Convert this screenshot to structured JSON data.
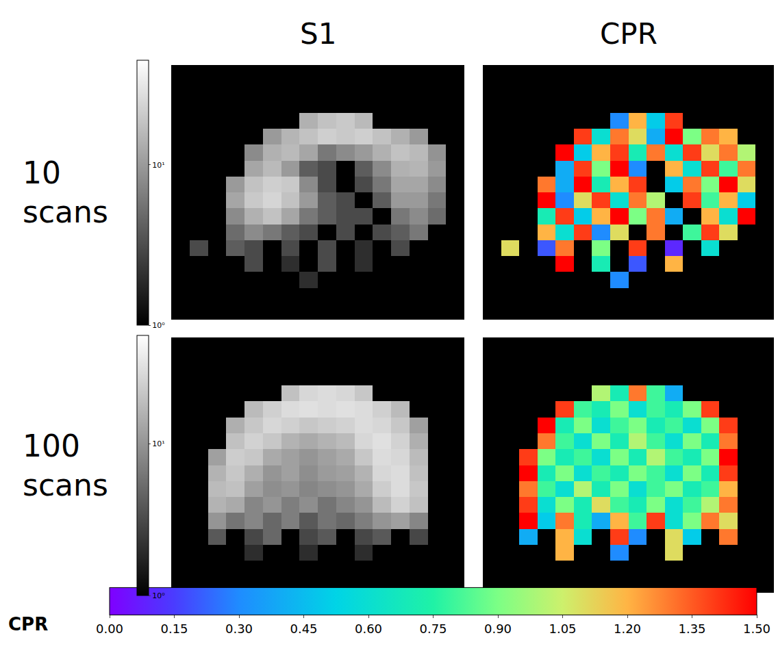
{
  "column_titles": [
    "S1",
    "CPR"
  ],
  "row_titles": [
    "10 scans",
    "100 scans"
  ],
  "colorbar": {
    "title": "CPR",
    "zlim": [
      0,
      1.5
    ],
    "zticks": [
      {
        "value": 0,
        "label": "0.00"
      },
      0.15,
      {
        "value": 0.3,
        "label": "0.30"
      },
      0.45,
      {
        "value": 0.6,
        "label": "0.60"
      },
      0.75,
      {
        "value": 0.9,
        "label": "0.90"
      },
      1.05,
      {
        "value": 1.2,
        "label": "1.20"
      },
      1.35,
      {
        "value": 1.5,
        "label": "1.50"
      }
    ]
  },
  "chart_data": [
    {
      "type": "heatmap",
      "log": true,
      "tick_labels": false,
      "zlim": [
        1,
        45
      ],
      "zticks": [
        {
          "value": 1,
          "label": "10⁰"
        },
        {
          "value": 10,
          "label": "10¹"
        }
      ],
      "cells": [
        [
          null,
          null,
          null,
          null,
          null,
          null,
          null,
          null,
          null,
          null,
          null,
          null,
          null,
          null,
          null,
          null
        ],
        [
          null,
          null,
          null,
          null,
          null,
          null,
          null,
          null,
          null,
          null,
          null,
          null,
          null,
          null,
          null,
          null
        ],
        [
          null,
          null,
          null,
          null,
          null,
          null,
          null,
          null,
          null,
          null,
          null,
          null,
          null,
          null,
          null,
          null
        ],
        [
          null,
          null,
          null,
          null,
          null,
          null,
          null,
          14,
          18,
          20,
          16,
          null,
          null,
          null,
          null,
          null
        ],
        [
          null,
          null,
          null,
          null,
          null,
          10,
          15,
          18,
          22,
          20,
          22,
          18,
          14,
          10,
          null,
          null
        ],
        [
          null,
          null,
          null,
          null,
          8,
          14,
          16,
          12,
          6,
          8,
          10,
          14,
          18,
          16,
          9,
          null
        ],
        [
          null,
          null,
          null,
          null,
          12,
          16,
          10,
          4,
          3,
          null,
          4,
          8,
          14,
          15,
          10,
          null
        ],
        [
          null,
          null,
          null,
          10,
          18,
          22,
          20,
          8,
          3,
          null,
          3,
          6,
          12,
          12,
          8,
          null
        ],
        [
          null,
          null,
          null,
          12,
          20,
          24,
          18,
          10,
          4,
          3,
          null,
          4,
          10,
          10,
          6,
          null
        ],
        [
          null,
          null,
          null,
          8,
          14,
          18,
          12,
          6,
          4,
          3,
          3,
          null,
          6,
          8,
          5,
          null
        ],
        [
          null,
          null,
          null,
          5,
          8,
          6,
          4,
          3,
          null,
          3,
          null,
          3,
          4,
          6,
          null,
          null
        ],
        [
          null,
          3,
          null,
          4,
          3,
          null,
          3,
          null,
          3,
          null,
          2,
          null,
          3,
          null,
          null,
          null
        ],
        [
          null,
          null,
          null,
          null,
          3,
          null,
          2,
          null,
          3,
          null,
          2,
          null,
          null,
          null,
          null,
          null
        ],
        [
          null,
          null,
          null,
          null,
          null,
          null,
          null,
          2,
          null,
          null,
          null,
          null,
          null,
          null,
          null,
          null
        ],
        [
          null,
          null,
          null,
          null,
          null,
          null,
          null,
          null,
          null,
          null,
          null,
          null,
          null,
          null,
          null,
          null
        ],
        [
          null,
          null,
          null,
          null,
          null,
          null,
          null,
          null,
          null,
          null,
          null,
          null,
          null,
          null,
          null,
          null
        ]
      ]
    },
    {
      "type": "heatmap",
      "tick_labels": false,
      "cells": [
        [
          null,
          null,
          null,
          null,
          null,
          null,
          null,
          null,
          null,
          null,
          null,
          null,
          null,
          null,
          null,
          null
        ],
        [
          null,
          null,
          null,
          null,
          null,
          null,
          null,
          null,
          null,
          null,
          null,
          null,
          null,
          null,
          null,
          null
        ],
        [
          null,
          null,
          null,
          null,
          null,
          null,
          null,
          null,
          null,
          null,
          null,
          null,
          null,
          null,
          null,
          null
        ],
        [
          null,
          null,
          null,
          null,
          null,
          null,
          null,
          0.3,
          1.2,
          0.5,
          1.4,
          null,
          null,
          null,
          null,
          null
        ],
        [
          null,
          null,
          null,
          null,
          null,
          1.4,
          0.6,
          1.3,
          1.1,
          0.4,
          1.5,
          0.9,
          1.3,
          1.2,
          null,
          null
        ],
        [
          null,
          null,
          null,
          null,
          1.5,
          0.5,
          1.2,
          1.4,
          0.7,
          1.3,
          0.6,
          1.4,
          1.1,
          1.3,
          1.0,
          null
        ],
        [
          null,
          null,
          null,
          null,
          0.4,
          1.4,
          0.9,
          1.5,
          0.3,
          null,
          1.2,
          0.6,
          1.4,
          0.8,
          1.3,
          null
        ],
        [
          null,
          null,
          null,
          1.3,
          0.4,
          1.5,
          0.7,
          1.2,
          1.4,
          null,
          0.5,
          1.3,
          0.9,
          1.5,
          1.1,
          null
        ],
        [
          null,
          null,
          null,
          1.5,
          0.3,
          1.1,
          1.4,
          0.6,
          1.3,
          1.0,
          null,
          1.4,
          0.8,
          1.2,
          0.5,
          null
        ],
        [
          null,
          null,
          null,
          0.7,
          1.4,
          0.5,
          1.2,
          1.5,
          0.9,
          1.3,
          0.4,
          null,
          1.2,
          0.6,
          1.5,
          null
        ],
        [
          null,
          null,
          null,
          1.2,
          0.6,
          1.4,
          0.3,
          1.1,
          null,
          1.3,
          null,
          0.8,
          1.4,
          1.1,
          null,
          null
        ],
        [
          null,
          1.1,
          null,
          0.2,
          1.3,
          null,
          0.9,
          null,
          1.4,
          null,
          0.1,
          null,
          0.6,
          null,
          null,
          null
        ],
        [
          null,
          null,
          null,
          null,
          1.5,
          null,
          0.7,
          null,
          0.2,
          null,
          1.2,
          null,
          null,
          null,
          null,
          null
        ],
        [
          null,
          null,
          null,
          null,
          null,
          null,
          null,
          0.3,
          null,
          null,
          null,
          null,
          null,
          null,
          null,
          null
        ],
        [
          null,
          null,
          null,
          null,
          null,
          null,
          null,
          null,
          null,
          null,
          null,
          null,
          null,
          null,
          null,
          null
        ],
        [
          null,
          null,
          null,
          null,
          null,
          null,
          null,
          null,
          null,
          null,
          null,
          null,
          null,
          null,
          null,
          null
        ]
      ]
    },
    {
      "type": "heatmap",
      "log": true,
      "tick_labels": false,
      "zlim": [
        1,
        52
      ],
      "zticks": [
        {
          "value": 1,
          "label": "10⁰"
        },
        {
          "value": 10,
          "label": "10¹"
        }
      ],
      "cells": [
        [
          null,
          null,
          null,
          null,
          null,
          null,
          null,
          null,
          null,
          null,
          null,
          null,
          null,
          null,
          null,
          null
        ],
        [
          null,
          null,
          null,
          null,
          null,
          null,
          null,
          null,
          null,
          null,
          null,
          null,
          null,
          null,
          null,
          null
        ],
        [
          null,
          null,
          null,
          null,
          null,
          null,
          null,
          null,
          null,
          null,
          null,
          null,
          null,
          null,
          null,
          null
        ],
        [
          null,
          null,
          null,
          null,
          null,
          null,
          20,
          28,
          30,
          28,
          22,
          null,
          null,
          null,
          null,
          null
        ],
        [
          null,
          null,
          null,
          null,
          18,
          25,
          30,
          32,
          30,
          32,
          30,
          25,
          18,
          null,
          null,
          null
        ],
        [
          null,
          null,
          null,
          15,
          22,
          28,
          25,
          22,
          24,
          26,
          30,
          28,
          22,
          12,
          null,
          null
        ],
        [
          null,
          null,
          null,
          20,
          26,
          22,
          16,
          14,
          16,
          18,
          28,
          32,
          26,
          15,
          null,
          null
        ],
        [
          null,
          null,
          12,
          24,
          22,
          14,
          12,
          10,
          12,
          14,
          22,
          30,
          28,
          18,
          null,
          null
        ],
        [
          null,
          null,
          16,
          22,
          15,
          10,
          12,
          9,
          11,
          12,
          16,
          28,
          30,
          20,
          null,
          null
        ],
        [
          null,
          null,
          18,
          20,
          12,
          9,
          10,
          8,
          9,
          10,
          14,
          24,
          30,
          22,
          null,
          null
        ],
        [
          null,
          null,
          16,
          14,
          8,
          10,
          7,
          9,
          6,
          8,
          10,
          18,
          26,
          20,
          null,
          null
        ],
        [
          null,
          null,
          10,
          6,
          8,
          5,
          7,
          4,
          6,
          5,
          7,
          10,
          12,
          8,
          null,
          null
        ],
        [
          null,
          null,
          4,
          null,
          3,
          5,
          null,
          3,
          4,
          null,
          3,
          4,
          null,
          3,
          null,
          null
        ],
        [
          null,
          null,
          null,
          null,
          2,
          null,
          null,
          2,
          null,
          null,
          2,
          null,
          null,
          null,
          null,
          null
        ],
        [
          null,
          null,
          null,
          null,
          null,
          null,
          null,
          null,
          null,
          null,
          null,
          null,
          null,
          null,
          null,
          null
        ],
        [
          null,
          null,
          null,
          null,
          null,
          null,
          null,
          null,
          null,
          null,
          null,
          null,
          null,
          null,
          null,
          null
        ]
      ]
    },
    {
      "type": "heatmap",
      "tick_labels": false,
      "cells": [
        [
          null,
          null,
          null,
          null,
          null,
          null,
          null,
          null,
          null,
          null,
          null,
          null,
          null,
          null,
          null,
          null
        ],
        [
          null,
          null,
          null,
          null,
          null,
          null,
          null,
          null,
          null,
          null,
          null,
          null,
          null,
          null,
          null,
          null
        ],
        [
          null,
          null,
          null,
          null,
          null,
          null,
          null,
          null,
          null,
          null,
          null,
          null,
          null,
          null,
          null,
          null
        ],
        [
          null,
          null,
          null,
          null,
          null,
          null,
          1.0,
          0.7,
          1.3,
          0.8,
          0.4,
          null,
          null,
          null,
          null,
          null
        ],
        [
          null,
          null,
          null,
          null,
          1.4,
          0.8,
          0.7,
          0.9,
          0.6,
          0.8,
          0.7,
          0.9,
          1.4,
          null,
          null,
          null
        ],
        [
          null,
          null,
          null,
          1.5,
          0.7,
          0.9,
          0.6,
          0.8,
          0.9,
          0.7,
          0.8,
          0.6,
          0.9,
          1.4,
          null,
          null
        ],
        [
          null,
          null,
          null,
          1.3,
          0.8,
          0.6,
          0.9,
          0.7,
          1.0,
          0.8,
          0.6,
          0.9,
          0.7,
          1.3,
          null,
          null
        ],
        [
          null,
          null,
          1.4,
          0.9,
          0.7,
          0.8,
          0.6,
          0.9,
          0.7,
          1.0,
          0.8,
          0.7,
          0.9,
          1.5,
          null,
          null
        ],
        [
          null,
          null,
          1.5,
          0.7,
          0.9,
          0.6,
          0.8,
          0.7,
          0.9,
          0.8,
          0.6,
          0.9,
          0.7,
          1.4,
          null,
          null
        ],
        [
          null,
          null,
          1.3,
          0.8,
          0.6,
          1.0,
          0.7,
          0.9,
          0.6,
          0.8,
          0.9,
          0.7,
          0.8,
          1.2,
          null,
          null
        ],
        [
          null,
          null,
          1.4,
          0.6,
          0.9,
          0.7,
          1.1,
          0.8,
          0.7,
          0.9,
          0.6,
          0.8,
          1.0,
          1.3,
          null,
          null
        ],
        [
          null,
          null,
          1.5,
          0.5,
          1.3,
          0.7,
          0.4,
          1.2,
          0.8,
          1.4,
          0.6,
          0.9,
          1.3,
          1.1,
          null,
          null
        ],
        [
          null,
          null,
          0.4,
          null,
          1.2,
          0.6,
          null,
          1.4,
          0.3,
          null,
          1.1,
          0.5,
          null,
          1.3,
          null,
          null
        ],
        [
          null,
          null,
          null,
          null,
          1.2,
          null,
          null,
          0.3,
          null,
          null,
          1.1,
          null,
          null,
          null,
          null,
          null
        ],
        [
          null,
          null,
          null,
          null,
          null,
          null,
          null,
          null,
          null,
          null,
          null,
          null,
          null,
          null,
          null,
          null
        ],
        [
          null,
          null,
          null,
          null,
          null,
          null,
          null,
          null,
          null,
          null,
          null,
          null,
          null,
          null,
          null,
          null
        ]
      ]
    }
  ]
}
